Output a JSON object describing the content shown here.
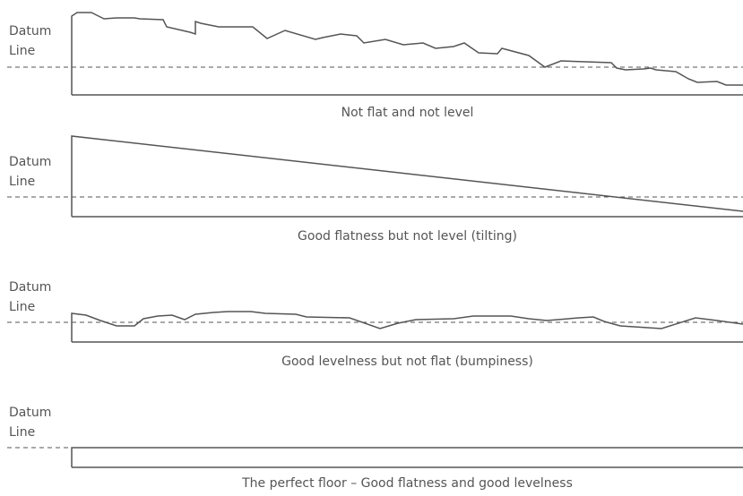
{
  "datum_label": {
    "line1": "Datum",
    "line2": "Line"
  },
  "panels": [
    {
      "caption": "Not flat and not level"
    },
    {
      "caption": "Good flatness but not level (tilting)"
    },
    {
      "caption": "Good levelness but not flat (bumpiness)"
    },
    {
      "caption": "The perfect floor – Good flatness and good levelness"
    }
  ],
  "colors": {
    "line": "#555555",
    "dashed": "#555555",
    "text": "#555555"
  }
}
